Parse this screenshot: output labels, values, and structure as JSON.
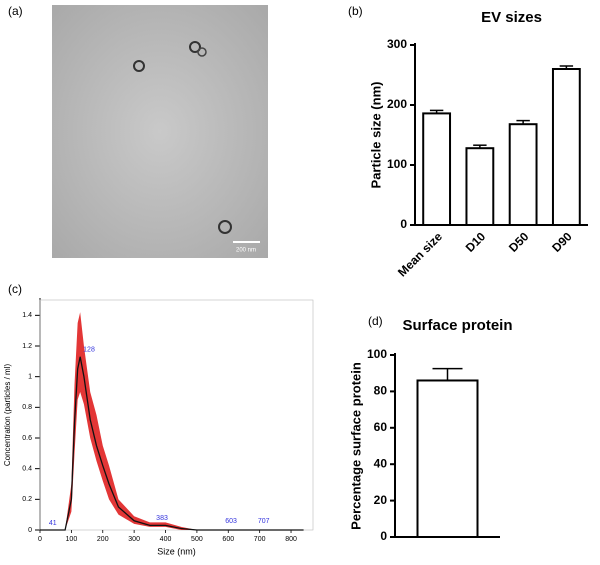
{
  "panel_labels": [
    "(a)",
    "(b)",
    "(c)",
    "(d)"
  ],
  "image": {
    "scale_bar": "200 nm"
  },
  "chart_data": [
    {
      "type": "bar",
      "title": "EV sizes",
      "y_label": "Particle size (nm)",
      "categories": [
        "Mean size",
        "D10",
        "D50",
        "D90"
      ],
      "values": [
        186,
        128,
        168,
        260
      ],
      "errors": [
        5,
        5,
        6,
        5
      ],
      "color": "#ffffff",
      "ylim": [
        0,
        300
      ],
      "yticks": [
        0,
        100,
        200,
        300
      ]
    },
    {
      "type": "line",
      "x_label": "Size (nm)",
      "y_label": "Concentration (particles / ml)",
      "x": [
        0,
        40,
        80,
        100,
        110,
        120,
        128,
        140,
        160,
        180,
        200,
        220,
        250,
        300,
        350,
        400,
        450,
        500,
        600,
        700,
        800,
        840
      ],
      "series": [
        {
          "color": "#111111",
          "values": [
            0,
            0,
            0,
            0.2,
            0.7,
            1.05,
            1.13,
            1.0,
            0.72,
            0.55,
            0.42,
            0.3,
            0.15,
            0.06,
            0.03,
            0.03,
            0.01,
            0,
            0,
            0,
            0,
            0
          ]
        }
      ],
      "band": {
        "color": "#e02020",
        "upper": [
          0,
          0,
          0,
          0.3,
          0.95,
          1.35,
          1.42,
          1.2,
          0.9,
          0.75,
          0.55,
          0.42,
          0.2,
          0.09,
          0.05,
          0.05,
          0.02,
          0,
          0,
          0,
          0,
          0
        ],
        "lower": [
          0,
          0,
          0,
          0.12,
          0.5,
          0.85,
          0.9,
          0.82,
          0.6,
          0.45,
          0.32,
          0.2,
          0.1,
          0.04,
          0.02,
          0.02,
          0,
          0,
          0,
          0,
          0,
          0
        ]
      },
      "peak_labels": [
        {
          "x": 41,
          "y": 0.02
        },
        {
          "x": 128,
          "y": 1.15
        },
        {
          "x": 383,
          "y": 0.05
        },
        {
          "x": 603,
          "y": 0.03
        },
        {
          "x": 707,
          "y": 0.03
        }
      ],
      "xlim": [
        0,
        870
      ],
      "ylim": [
        0,
        1.5
      ],
      "xticks": [
        0,
        100,
        200,
        300,
        400,
        500,
        600,
        700,
        800
      ],
      "yticks": [
        0,
        0.2,
        0.4,
        0.6,
        0.8,
        1.0,
        1.2,
        1.4
      ]
    },
    {
      "type": "bar",
      "title": "Surface protein",
      "y_label": "Percentage surface protein",
      "categories": [
        null
      ],
      "values": [
        86
      ],
      "errors": [
        6.5
      ],
      "color": "#ffffff",
      "ylim": [
        0,
        100
      ],
      "yticks": [
        0,
        20,
        40,
        60,
        80,
        100
      ]
    }
  ]
}
